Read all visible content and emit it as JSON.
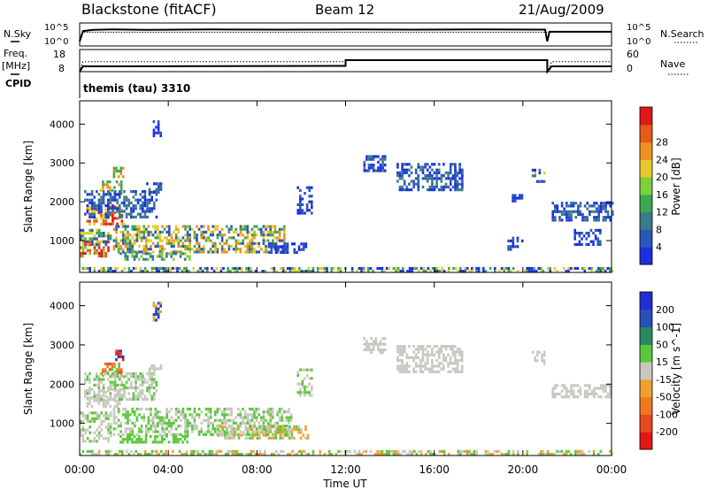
{
  "header": {
    "radar": "Blackstone (fitACF)",
    "beam": "Beam 12",
    "date": "21/Aug/2009"
  },
  "left_labels": {
    "nsky": "N.Sky",
    "freq": "Freq.",
    "freq_unit": "[MHz]",
    "cpid": "CPID"
  },
  "right_labels": {
    "nsearch": "N.Search",
    "nave": "Nave"
  },
  "cpid_text": "themis (tau) 3310",
  "xaxis": {
    "label": "Time UT",
    "ticks": [
      "00:00",
      "04:00",
      "08:00",
      "12:00",
      "16:00",
      "20:00",
      "00:00"
    ]
  },
  "colors": {
    "power_scale": [
      "#1e2fe0",
      "#2858b8",
      "#3a7a8a",
      "#3ca850",
      "#7fcf3a",
      "#e8c82a",
      "#f09020",
      "#e85a1a",
      "#e01818"
    ],
    "velocity_scale": [
      "#2030d0",
      "#2850b8",
      "#2a8860",
      "#5ac83a",
      "#c8c8c0",
      "#f0a030",
      "#f07820",
      "#e84820",
      "#e01818"
    ]
  },
  "chart_data": [
    {
      "type": "line",
      "name": "noise",
      "yticks_left": [
        "10^5",
        "10^0"
      ],
      "yticks_right": [
        "10^5",
        "10^0"
      ],
      "xlim": [
        0,
        24
      ],
      "series_nsky": [
        [
          0.0,
          0.2
        ],
        [
          0.15,
          0.65
        ],
        [
          0.6,
          0.7
        ],
        [
          1.5,
          0.72
        ],
        [
          3,
          0.7
        ],
        [
          6,
          0.72
        ],
        [
          9,
          0.71
        ],
        [
          12,
          0.72
        ],
        [
          15,
          0.71
        ],
        [
          18,
          0.72
        ],
        [
          21,
          0.71
        ],
        [
          21.1,
          0.2
        ],
        [
          21.2,
          0.62
        ],
        [
          24,
          0.62
        ]
      ],
      "series_nsearch": [
        [
          0.0,
          0.2
        ],
        [
          0.15,
          0.6
        ],
        [
          24,
          0.6
        ]
      ]
    },
    {
      "type": "line",
      "name": "frequency",
      "yticks_left": [
        "18",
        "8"
      ],
      "yticks_right": [
        "60",
        "0"
      ],
      "xlim": [
        0,
        24
      ],
      "freq_mhz": [
        [
          0,
          8
        ],
        [
          0.15,
          10.4
        ],
        [
          12,
          10.6
        ],
        [
          12,
          13.2
        ],
        [
          21.1,
          13.2
        ],
        [
          21.1,
          8
        ],
        [
          21.3,
          10.4
        ],
        [
          24,
          10.4
        ]
      ],
      "nave": [
        [
          0,
          8
        ],
        [
          0.15,
          12.5
        ],
        [
          12,
          12.5
        ],
        [
          12,
          13
        ],
        [
          21.1,
          13
        ],
        [
          21.1,
          8
        ],
        [
          21.3,
          12.5
        ],
        [
          24,
          12.5
        ]
      ]
    },
    {
      "type": "heatmap",
      "name": "power",
      "ylabel": "Slant Range [km]",
      "yticks": [
        "1000",
        "2000",
        "3000",
        "4000"
      ],
      "ylim": [
        180,
        4600
      ],
      "xlim": [
        0,
        24
      ],
      "colorbar_label": "Power [dB]",
      "colorbar_ticks": [
        "4",
        "8",
        "12",
        "16",
        "20",
        "24",
        "28"
      ],
      "regions": [
        {
          "x": [
            0,
            1.3
          ],
          "y": [
            600,
            1000
          ],
          "levels": [
            4,
            7,
            8
          ]
        },
        {
          "x": [
            0,
            1.4
          ],
          "y": [
            900,
            1300
          ],
          "levels": [
            1,
            3,
            5
          ]
        },
        {
          "x": [
            0.3,
            2.0
          ],
          "y": [
            1400,
            1900
          ],
          "levels": [
            5,
            7,
            8
          ]
        },
        {
          "x": [
            0.9,
            1.9
          ],
          "y": [
            2200,
            2550
          ],
          "levels": [
            3,
            5,
            6
          ]
        },
        {
          "x": [
            1.5,
            2.0
          ],
          "y": [
            2650,
            2900
          ],
          "levels": [
            3,
            6
          ]
        },
        {
          "x": [
            0.2,
            3.5
          ],
          "y": [
            1600,
            2300
          ],
          "levels": [
            0,
            1,
            2
          ]
        },
        {
          "x": [
            3.0,
            3.7
          ],
          "y": [
            2250,
            2500
          ],
          "levels": [
            0,
            1,
            2
          ]
        },
        {
          "x": [
            3.3,
            3.7
          ],
          "y": [
            3600,
            4100
          ],
          "levels": [
            0,
            1
          ]
        },
        {
          "x": [
            1.5,
            9.2
          ],
          "y": [
            700,
            1400
          ],
          "levels": [
            1,
            3,
            5,
            6
          ]
        },
        {
          "x": [
            1.8,
            5.0
          ],
          "y": [
            500,
            700
          ],
          "levels": [
            2,
            4
          ]
        },
        {
          "x": [
            8.5,
            10.2
          ],
          "y": [
            700,
            950
          ],
          "levels": [
            0,
            1
          ]
        },
        {
          "x": [
            9.8,
            10.5
          ],
          "y": [
            1700,
            2400
          ],
          "levels": [
            0,
            1
          ]
        },
        {
          "x": [
            12.8,
            13.8
          ],
          "y": [
            2800,
            3200
          ],
          "levels": [
            0,
            2
          ]
        },
        {
          "x": [
            14.3,
            17.3
          ],
          "y": [
            2300,
            3000
          ],
          "levels": [
            0,
            1,
            2
          ]
        },
        {
          "x": [
            16.8,
            17.3
          ],
          "y": [
            2400,
            2850
          ],
          "levels": [
            0,
            1
          ]
        },
        {
          "x": [
            19.5,
            20.0
          ],
          "y": [
            2000,
            2200
          ],
          "levels": [
            0,
            1
          ]
        },
        {
          "x": [
            20.4,
            21.0
          ],
          "y": [
            2500,
            2850
          ],
          "levels": [
            0,
            2,
            5
          ]
        },
        {
          "x": [
            19.3,
            20.0
          ],
          "y": [
            800,
            1100
          ],
          "levels": [
            0,
            1
          ]
        },
        {
          "x": [
            21.3,
            24
          ],
          "y": [
            1500,
            2000
          ],
          "levels": [
            0,
            1,
            2
          ]
        },
        {
          "x": [
            22.3,
            23.5
          ],
          "y": [
            900,
            1300
          ],
          "levels": [
            0,
            1
          ]
        },
        {
          "x": [
            0,
            24
          ],
          "y": [
            200,
            320
          ],
          "levels": [
            0,
            3,
            5
          ]
        }
      ]
    },
    {
      "type": "heatmap",
      "name": "velocity",
      "ylabel": "Slant Range [km]",
      "yticks": [
        "1000",
        "2000",
        "3000",
        "4000"
      ],
      "ylim": [
        180,
        4600
      ],
      "xlim": [
        0,
        24
      ],
      "colorbar_label": "Velocity [m s^-1]",
      "colorbar_ticks": [
        "200",
        "100",
        "50",
        "15",
        "-15",
        "-50",
        "-100",
        "-200"
      ],
      "regions": [
        {
          "x": [
            0,
            1.4
          ],
          "y": [
            550,
            1300
          ],
          "levels": [
            4,
            4,
            3
          ]
        },
        {
          "x": [
            0.3,
            2.0
          ],
          "y": [
            1400,
            1900
          ],
          "levels": [
            4,
            4
          ]
        },
        {
          "x": [
            0.9,
            1.9
          ],
          "y": [
            2200,
            2550
          ],
          "levels": [
            3,
            7,
            6
          ]
        },
        {
          "x": [
            1.6,
            2.0
          ],
          "y": [
            2650,
            2950
          ],
          "levels": [
            8,
            0,
            7
          ]
        },
        {
          "x": [
            0.2,
            3.5
          ],
          "y": [
            1600,
            2300
          ],
          "levels": [
            4,
            4,
            3
          ]
        },
        {
          "x": [
            3.0,
            3.7
          ],
          "y": [
            2250,
            2500
          ],
          "levels": [
            4,
            4
          ]
        },
        {
          "x": [
            3.3,
            3.7
          ],
          "y": [
            3600,
            4100
          ],
          "levels": [
            0,
            5,
            1
          ]
        },
        {
          "x": [
            1.5,
            9.5
          ],
          "y": [
            700,
            1400
          ],
          "levels": [
            4,
            4,
            3,
            3
          ]
        },
        {
          "x": [
            1.8,
            5.0
          ],
          "y": [
            500,
            700
          ],
          "levels": [
            3,
            3
          ]
        },
        {
          "x": [
            6.2,
            10.3
          ],
          "y": [
            600,
            950
          ],
          "levels": [
            5,
            3,
            4
          ]
        },
        {
          "x": [
            9.8,
            10.5
          ],
          "y": [
            1700,
            2400
          ],
          "levels": [
            3,
            4
          ]
        },
        {
          "x": [
            12.8,
            13.8
          ],
          "y": [
            2800,
            3200
          ],
          "levels": [
            4,
            4
          ]
        },
        {
          "x": [
            14.3,
            17.3
          ],
          "y": [
            2300,
            3000
          ],
          "levels": [
            4,
            4
          ]
        },
        {
          "x": [
            20.4,
            21.0
          ],
          "y": [
            2500,
            2850
          ],
          "levels": [
            4
          ]
        },
        {
          "x": [
            21.3,
            24
          ],
          "y": [
            1700,
            2000
          ],
          "levels": [
            4,
            4
          ]
        },
        {
          "x": [
            0,
            24
          ],
          "y": [
            200,
            320
          ],
          "levels": [
            5,
            3,
            4
          ]
        }
      ]
    }
  ]
}
